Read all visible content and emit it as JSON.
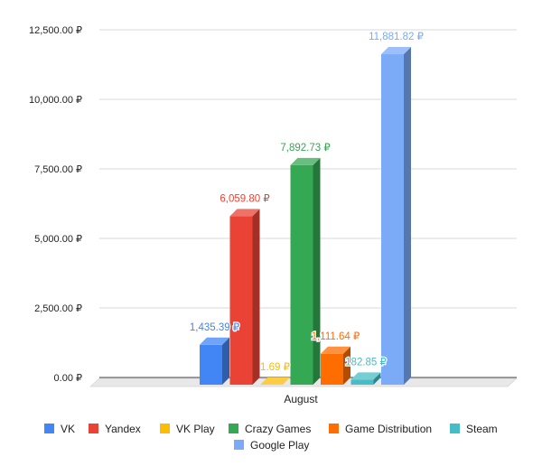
{
  "chart_data": {
    "type": "bar",
    "categories": [
      "August"
    ],
    "series": [
      {
        "name": "VK",
        "values": [
          1435.39
        ],
        "label": "1,435.39 ₽",
        "color": "#4285f4"
      },
      {
        "name": "Yandex",
        "values": [
          6059.8
        ],
        "label": "6,059.80 ₽",
        "color": "#ea4335"
      },
      {
        "name": "VK Play",
        "values": [
          1.69
        ],
        "label": "1.69 ₽",
        "color": "#fbbc04"
      },
      {
        "name": "Crazy Games",
        "values": [
          7892.73
        ],
        "label": "7,892.73 ₽",
        "color": "#34a853"
      },
      {
        "name": "Game Distribution",
        "values": [
          1111.64
        ],
        "label": "1,111.64 ₽",
        "color": "#ff6d01"
      },
      {
        "name": "Steam",
        "values": [
          182.85
        ],
        "label": "182.85 ₽",
        "color": "#46bdc6"
      },
      {
        "name": "Google Play",
        "values": [
          11881.82
        ],
        "label": "11,881.82 ₽",
        "color": "#7baaf7"
      }
    ],
    "y_ticks": [
      "0.00 ₽",
      "2,500.00 ₽",
      "5,000.00 ₽",
      "7,500.00 ₽",
      "10,000.00 ₽",
      "12,500.00 ₽"
    ],
    "ylim": [
      0,
      12500
    ],
    "grid": true,
    "legend_position": "bottom",
    "style": "3d"
  }
}
